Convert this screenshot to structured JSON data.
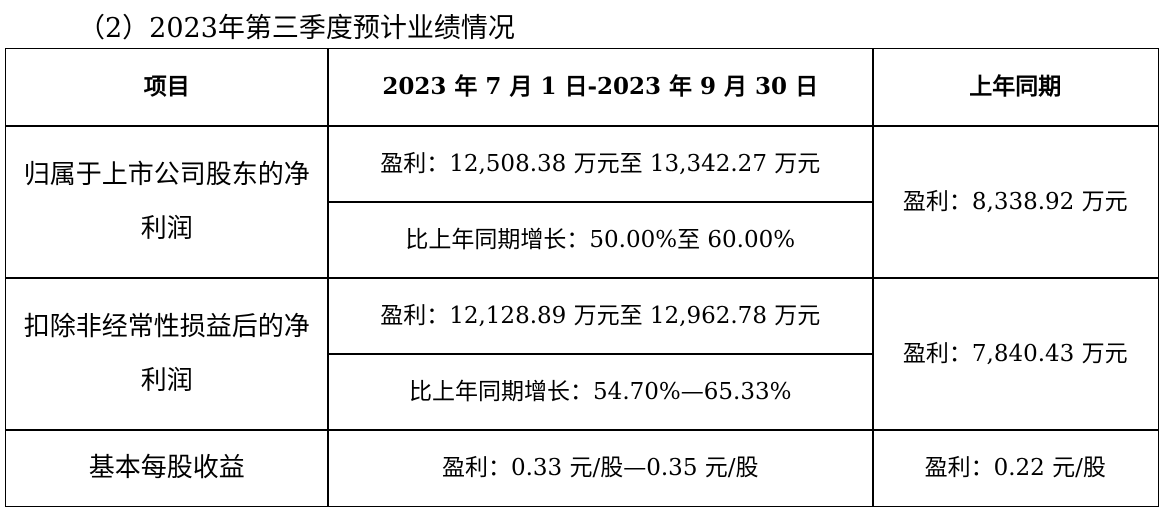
{
  "title": "（2）2023年第三季度预计业绩情况",
  "table": {
    "header": [
      "项目",
      "2023 年 7 月 1 日-2023 年 9 月 30 日",
      "上年同期"
    ],
    "rows": [
      {
        "item": "归属于上市公司股东的净利润",
        "current": [
          "盈利：12,508.38 万元至 13,342.27 万元",
          "比上年同期增长：50.00%至 60.00%"
        ],
        "prior": "盈利：8,338.92 万元"
      },
      {
        "item": "扣除非经常性损益后的净利润",
        "current": [
          "盈利：12,128.89 万元至 12,962.78 万元",
          "比上年同期增长：54.70%—65.33%"
        ],
        "prior": "盈利：7,840.43 万元"
      },
      {
        "item": "基本每股收益",
        "current": [
          "盈利：0.33 元/股—0.35 元/股"
        ],
        "prior": "盈利：0.22 元/股"
      }
    ]
  }
}
